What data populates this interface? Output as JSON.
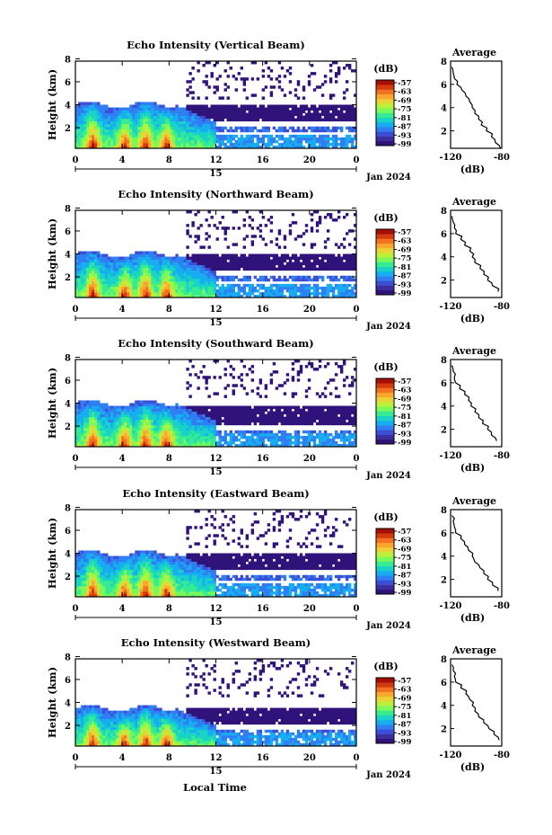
{
  "figure": {
    "xlabel_bottom": "Local Time",
    "date_label": "Jan 2024",
    "day_label": "15",
    "unit_label": "(dB)",
    "avg_title": "Average",
    "colorbar_ticks": [
      "-57",
      "-63",
      "-69",
      "-75",
      "-81",
      "-87",
      "-93",
      "-99"
    ],
    "colormap": [
      "#30137a",
      "#3b2f9e",
      "#3d4ed6",
      "#2f7ff2",
      "#17aef0",
      "#18d3c6",
      "#36eb92",
      "#79f95a",
      "#bbf03a",
      "#ebd237",
      "#fba72e",
      "#f37221",
      "#d33a0e",
      "#a50f05"
    ]
  },
  "chart_data": [
    {
      "type": "heatmap",
      "title": "Echo Intensity (Vertical Beam)",
      "ylabel": "Height (km)",
      "xlabel": "",
      "x_ticks": [
        "0",
        "4",
        "8",
        "12",
        "16",
        "20",
        "0"
      ],
      "y_ticks": [
        "2",
        "4",
        "6",
        "8"
      ],
      "xlim": [
        0,
        24
      ],
      "ylim": [
        0.2,
        7.8
      ],
      "colorbar": {
        "label": "(dB)",
        "range": [
          -99,
          -57
        ]
      },
      "layers": {
        "convective_columns_hours": [
          1.5,
          4.2,
          6.0,
          7.8
        ],
        "low_layer_top_km": 4.0,
        "mid_layer_km": [
          2.5,
          4.0
        ],
        "sparse_echoes_km": [
          4.5,
          7.8
        ]
      },
      "average_profile": {
        "title": "Average",
        "xlabel": "(dB)",
        "xlim": [
          -120,
          -80
        ],
        "ylim": [
          0.5,
          8
        ],
        "x_ticks": [
          "-120",
          "-80"
        ],
        "y_ticks": [
          "2",
          "4",
          "6",
          "8"
        ],
        "height_km": [
          0.5,
          1.0,
          1.5,
          2.0,
          2.5,
          3.0,
          3.5,
          4.0,
          4.5,
          5.0,
          5.5,
          6.0,
          6.5,
          7.0,
          7.5
        ],
        "value_db": [
          -81,
          -85,
          -88,
          -92,
          -96,
          -98,
          -101,
          -103,
          -105,
          -108,
          -111,
          -115,
          -117,
          -118,
          -119
        ]
      }
    },
    {
      "type": "heatmap",
      "title": "Echo Intensity (Northward Beam)",
      "ylabel": "Height (km)",
      "xlabel": "",
      "x_ticks": [
        "0",
        "4",
        "8",
        "12",
        "16",
        "20",
        "0"
      ],
      "y_ticks": [
        "2",
        "4",
        "6",
        "8"
      ],
      "xlim": [
        0,
        24
      ],
      "ylim": [
        0.2,
        7.8
      ],
      "colorbar": {
        "label": "(dB)",
        "range": [
          -99,
          -57
        ]
      },
      "layers": {
        "convective_columns_hours": [
          1.5,
          4.2,
          6.0,
          7.8
        ],
        "low_layer_top_km": 4.0,
        "mid_layer_km": [
          2.5,
          4.0
        ],
        "sparse_echoes_km": [
          4.5,
          7.8
        ]
      },
      "average_profile": {
        "title": "Average",
        "xlabel": "(dB)",
        "xlim": [
          -120,
          -80
        ],
        "ylim": [
          0.5,
          8
        ],
        "x_ticks": [
          "-120",
          "-80"
        ],
        "y_ticks": [
          "2",
          "4",
          "6",
          "8"
        ],
        "height_km": [
          1.0,
          1.5,
          2.0,
          2.5,
          3.0,
          3.5,
          4.0,
          4.5,
          5.0,
          5.5,
          6.0,
          6.5,
          7.0,
          7.5
        ],
        "value_db": [
          -83,
          -87,
          -91,
          -94,
          -97,
          -101,
          -103,
          -105,
          -109,
          -112,
          -116,
          -117,
          -118,
          -119
        ]
      }
    },
    {
      "type": "heatmap",
      "title": "Echo Intensity (Southward Beam)",
      "ylabel": "Height (km)",
      "xlabel": "",
      "x_ticks": [
        "0",
        "4",
        "8",
        "12",
        "16",
        "20",
        "0"
      ],
      "y_ticks": [
        "2",
        "4",
        "6",
        "8"
      ],
      "xlim": [
        0,
        24
      ],
      "ylim": [
        0.2,
        7.8
      ],
      "colorbar": {
        "label": "(dB)",
        "range": [
          -99,
          -57
        ]
      },
      "layers": {
        "convective_columns_hours": [
          1.5,
          4.2,
          6.0,
          7.8
        ],
        "low_layer_top_km": 4.0,
        "mid_layer_km": [
          2.0,
          3.8
        ],
        "sparse_echoes_km": [
          4.5,
          7.8
        ]
      },
      "average_profile": {
        "title": "Average",
        "xlabel": "(dB)",
        "xlim": [
          -120,
          -80
        ],
        "ylim": [
          0.5,
          8
        ],
        "x_ticks": [
          "-120",
          "-80"
        ],
        "y_ticks": [
          "2",
          "4",
          "6",
          "8"
        ],
        "height_km": [
          1.0,
          1.5,
          2.0,
          2.5,
          3.0,
          3.5,
          4.0,
          4.5,
          5.0,
          5.5,
          6.0,
          6.5,
          7.0,
          7.5
        ],
        "value_db": [
          -84,
          -88,
          -91,
          -95,
          -98,
          -101,
          -104,
          -106,
          -109,
          -113,
          -116,
          -117,
          -118,
          -119
        ]
      }
    },
    {
      "type": "heatmap",
      "title": "Echo Intensity (Eastward Beam)",
      "ylabel": "Height (km)",
      "xlabel": "",
      "x_ticks": [
        "0",
        "4",
        "8",
        "12",
        "16",
        "20",
        "0"
      ],
      "y_ticks": [
        "2",
        "4",
        "6",
        "8"
      ],
      "xlim": [
        0,
        24
      ],
      "ylim": [
        0.2,
        7.8
      ],
      "colorbar": {
        "label": "(dB)",
        "range": [
          -99,
          -57
        ]
      },
      "layers": {
        "convective_columns_hours": [
          1.5,
          4.2,
          6.0,
          7.8
        ],
        "low_layer_top_km": 4.0,
        "mid_layer_km": [
          2.5,
          4.0
        ],
        "sparse_echoes_km": [
          4.5,
          7.8
        ]
      },
      "average_profile": {
        "title": "Average",
        "xlabel": "(dB)",
        "xlim": [
          -120,
          -80
        ],
        "ylim": [
          0.5,
          8
        ],
        "x_ticks": [
          "-120",
          "-80"
        ],
        "y_ticks": [
          "2",
          "4",
          "6",
          "8"
        ],
        "height_km": [
          1.0,
          1.5,
          2.0,
          2.5,
          3.0,
          3.5,
          4.0,
          4.5,
          5.0,
          5.5,
          6.0,
          6.5,
          7.0,
          7.5
        ],
        "value_db": [
          -83,
          -87,
          -91,
          -94,
          -97,
          -101,
          -103,
          -106,
          -109,
          -112,
          -116,
          -117,
          -118,
          -119
        ]
      }
    },
    {
      "type": "heatmap",
      "title": "Echo Intensity (Westward Beam)",
      "ylabel": "Height (km)",
      "xlabel": "Local Time",
      "x_ticks": [
        "0",
        "4",
        "8",
        "12",
        "16",
        "20",
        "0"
      ],
      "y_ticks": [
        "2",
        "4",
        "6",
        "8"
      ],
      "xlim": [
        0,
        24
      ],
      "ylim": [
        0.2,
        7.8
      ],
      "colorbar": {
        "label": "(dB)",
        "range": [
          -99,
          -57
        ]
      },
      "layers": {
        "convective_columns_hours": [
          1.5,
          4.2,
          6.0,
          7.8
        ],
        "low_layer_top_km": 3.5,
        "mid_layer_km": [
          2.0,
          3.5
        ],
        "sparse_echoes_km": [
          4.5,
          7.8
        ]
      },
      "average_profile": {
        "title": "Average",
        "xlabel": "(dB)",
        "xlim": [
          -120,
          -80
        ],
        "ylim": [
          0.5,
          8
        ],
        "x_ticks": [
          "-120",
          "-80"
        ],
        "y_ticks": [
          "2",
          "4",
          "6",
          "8"
        ],
        "height_km": [
          1.0,
          1.5,
          2.0,
          2.5,
          3.0,
          3.5,
          4.0,
          4.5,
          5.0,
          5.5,
          6.0,
          6.5,
          7.0,
          7.5
        ],
        "value_db": [
          -82,
          -86,
          -90,
          -94,
          -98,
          -101,
          -103,
          -105,
          -108,
          -112,
          -116,
          -117,
          -118,
          -119
        ]
      }
    }
  ]
}
